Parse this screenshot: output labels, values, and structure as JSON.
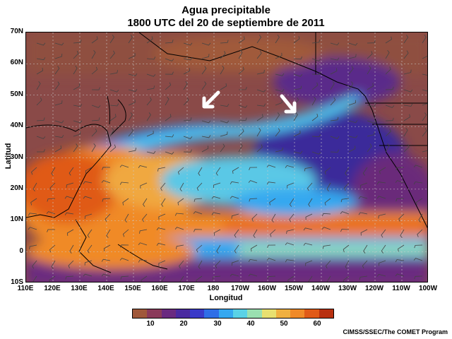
{
  "title_line1": "Agua precipitable",
  "title_line2": "1800 UTC del 20 de septiembre de 2011",
  "x_axis_title": "Longitud",
  "y_axis_title": "Latitud",
  "lat_labels": [
    "70N",
    "60N",
    "50N",
    "40N",
    "30N",
    "20N",
    "10N",
    "0",
    "10S"
  ],
  "lon_labels": [
    "110E",
    "120E",
    "130E",
    "140E",
    "150E",
    "160E",
    "170E",
    "180",
    "170W",
    "160W",
    "150W",
    "140W",
    "130W",
    "120W",
    "110W",
    "100W"
  ],
  "colorbar": {
    "labels": [
      "10",
      "20",
      "30",
      "40",
      "50",
      "60"
    ],
    "colors": [
      "#a0583a",
      "#8a3a5a",
      "#6a2a80",
      "#4a2aa0",
      "#3a3ac8",
      "#2f6ee6",
      "#35a8f0",
      "#5ad2e6",
      "#9ae0b0",
      "#e8e070",
      "#f0b040",
      "#f08a28",
      "#e05a18",
      "#b83010"
    ]
  },
  "credit": "CIMSS/SSEC/The COMET Program",
  "annotation_arrows": [
    {
      "name": "arrow-west",
      "lon": 176,
      "lat": 47
    },
    {
      "name": "arrow-east",
      "lon": -150,
      "lat": 44
    }
  ]
}
